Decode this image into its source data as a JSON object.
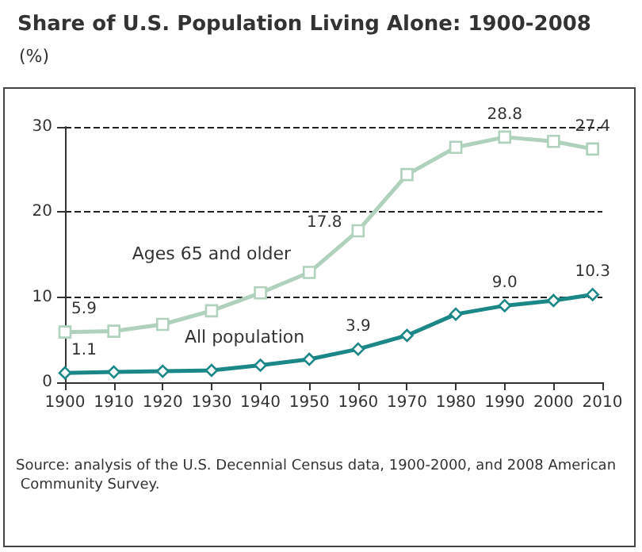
{
  "chart_data": {
    "type": "line",
    "title": "Share of U.S. Population Living Alone: 1900-2008",
    "ylabel": "(%)",
    "x": [
      1900,
      1910,
      1920,
      1930,
      1940,
      1950,
      1960,
      1970,
      1980,
      1990,
      2000,
      2008
    ],
    "series": [
      {
        "name": "Ages 65 and older",
        "color": "#b0d2bc",
        "marker": "square",
        "values": [
          5.9,
          6.0,
          6.8,
          8.4,
          10.5,
          12.9,
          17.8,
          24.4,
          27.6,
          28.8,
          28.3,
          27.4
        ],
        "value_labels": [
          "5.9",
          null,
          null,
          null,
          null,
          null,
          "17.8",
          null,
          null,
          "28.8",
          null,
          "27.4"
        ]
      },
      {
        "name": "All population",
        "color": "#1b8787",
        "marker": "diamond",
        "values": [
          1.1,
          1.2,
          1.3,
          1.4,
          2.0,
          2.7,
          3.9,
          5.5,
          8.0,
          9.0,
          9.6,
          10.3
        ],
        "value_labels": [
          "1.1",
          null,
          null,
          null,
          null,
          null,
          "3.9",
          null,
          null,
          "9.0",
          null,
          "10.3"
        ]
      }
    ],
    "xlim": [
      1900,
      2010
    ],
    "xticks": [
      1900,
      1910,
      1920,
      1930,
      1940,
      1950,
      1960,
      1970,
      1980,
      1990,
      2000,
      2010
    ],
    "ylim": [
      0,
      30
    ],
    "yticks": [
      0,
      10,
      20,
      30
    ],
    "grid": "y",
    "legend": false,
    "line_style": "solid",
    "annotations": [
      "Source: analysis of the U.S. Decennial Census data, 1900-2000, and 2008 American Community Survey."
    ]
  }
}
